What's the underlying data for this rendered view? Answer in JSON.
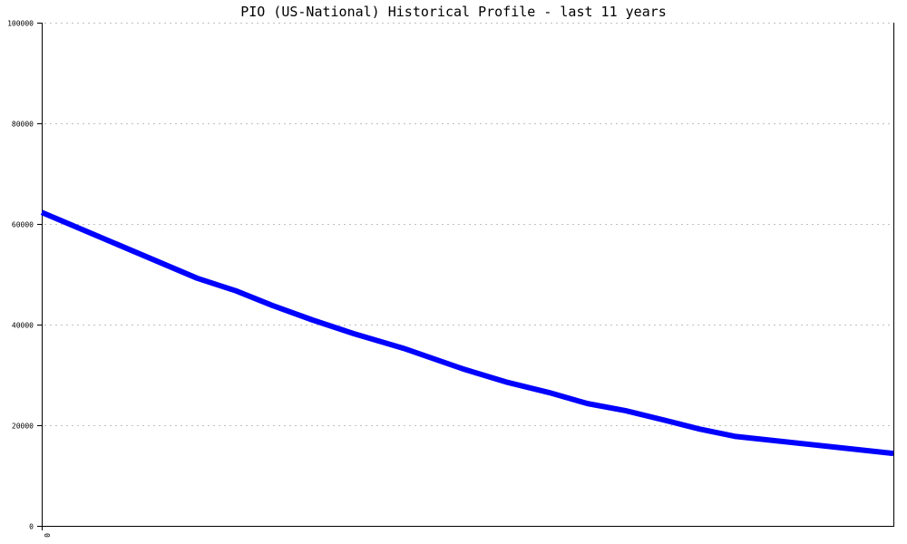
{
  "chart_data": {
    "type": "line",
    "title": "PIO (US-National) Historical Profile - last 11 years",
    "xlabel": "",
    "ylabel": "",
    "xlim": [
      0,
      11
    ],
    "ylim": [
      0,
      100000
    ],
    "x_tick_labels": [
      "0"
    ],
    "y_ticks": [
      0,
      20000,
      40000,
      60000,
      80000,
      100000
    ],
    "y_tick_labels": [
      "0",
      "20000",
      "40000",
      "60000",
      "80000",
      "100000"
    ],
    "grid": true,
    "legend": "none",
    "series": [
      {
        "color": "#0000ff",
        "x": [
          0,
          2.01,
          2.51,
          2.98,
          3.5,
          4.03,
          4.67,
          5.44,
          6.02,
          6.55,
          7.05,
          7.54,
          8.07,
          8.48,
          8.95,
          11
        ],
        "y": [
          62300,
          49200,
          46700,
          43800,
          40900,
          38200,
          35300,
          31200,
          28500,
          26500,
          24300,
          22900,
          20900,
          19300,
          17800,
          14400
        ]
      }
    ]
  }
}
